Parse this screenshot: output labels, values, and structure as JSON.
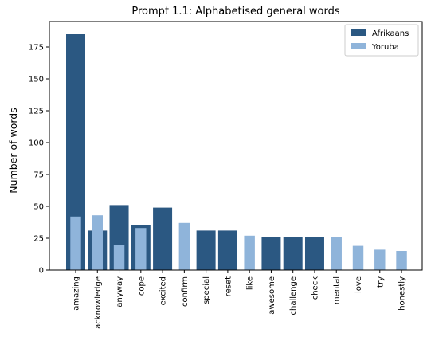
{
  "chart_data": {
    "type": "bar",
    "title": "Prompt 1.1: Alphabetised general words",
    "xlabel": "",
    "ylabel": "Number of words",
    "ylim": [
      0,
      195
    ],
    "yticks": [
      0,
      25,
      50,
      75,
      100,
      125,
      150,
      175
    ],
    "grid": false,
    "legend_position": "top-right",
    "categories": [
      "amazing",
      "acknowledge",
      "anyway",
      "cope",
      "excited",
      "confirm",
      "special",
      "reset",
      "like",
      "awesome",
      "challenge",
      "check",
      "mental",
      "love",
      "try",
      "honestly"
    ],
    "series": [
      {
        "name": "Afrikaans",
        "color": "#2b5882",
        "values": [
          185,
          31,
          51,
          35,
          49,
          null,
          31,
          31,
          null,
          26,
          26,
          26,
          null,
          null,
          null,
          null
        ]
      },
      {
        "name": "Yoruba",
        "color": "#8fb4da",
        "values": [
          42,
          43,
          20,
          33,
          null,
          37,
          null,
          null,
          27,
          null,
          null,
          null,
          26,
          19,
          16,
          15
        ]
      }
    ]
  }
}
